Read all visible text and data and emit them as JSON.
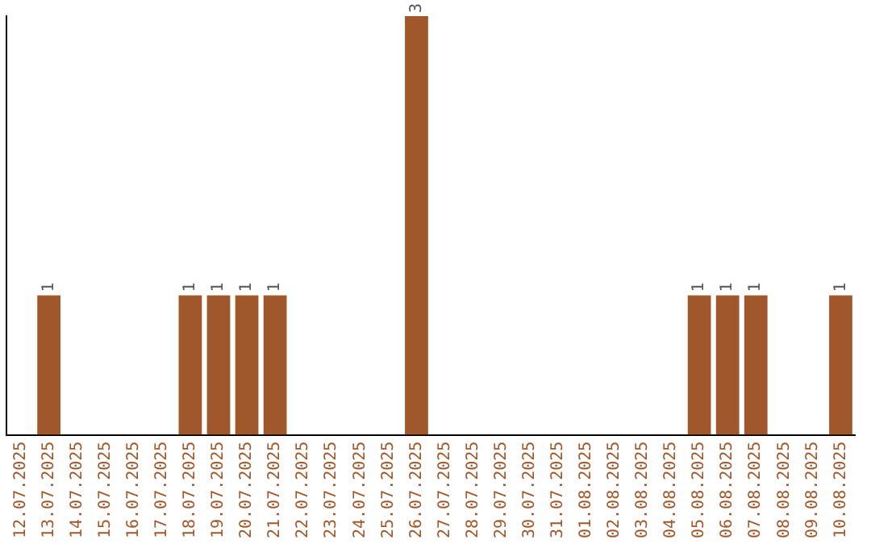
{
  "chart_data": {
    "type": "bar",
    "categories": [
      "12.07.2025",
      "13.07.2025",
      "14.07.2025",
      "15.07.2025",
      "16.07.2025",
      "17.07.2025",
      "18.07.2025",
      "19.07.2025",
      "20.07.2025",
      "21.07.2025",
      "22.07.2025",
      "23.07.2025",
      "24.07.2025",
      "25.07.2025",
      "26.07.2025",
      "27.07.2025",
      "28.07.2025",
      "29.07.2025",
      "30.07.2025",
      "31.07.2025",
      "01.08.2025",
      "02.08.2025",
      "03.08.2025",
      "04.08.2025",
      "05.08.2025",
      "06.08.2025",
      "07.08.2025",
      "08.08.2025",
      "09.08.2025",
      "10.08.2025"
    ],
    "values": [
      0,
      1,
      0,
      0,
      0,
      0,
      1,
      1,
      1,
      1,
      0,
      0,
      0,
      0,
      3,
      0,
      0,
      0,
      0,
      0,
      0,
      0,
      0,
      0,
      1,
      1,
      1,
      0,
      0,
      1
    ],
    "color": "#a0582a",
    "value_labels": [
      null,
      "1",
      null,
      null,
      null,
      null,
      "1",
      "1",
      "1",
      "1",
      null,
      null,
      null,
      null,
      "3",
      null,
      null,
      null,
      null,
      null,
      null,
      null,
      null,
      null,
      "1",
      "1",
      "1",
      null,
      null,
      "1"
    ],
    "tick_labels": "x",
    "grid": false,
    "legend": false
  }
}
